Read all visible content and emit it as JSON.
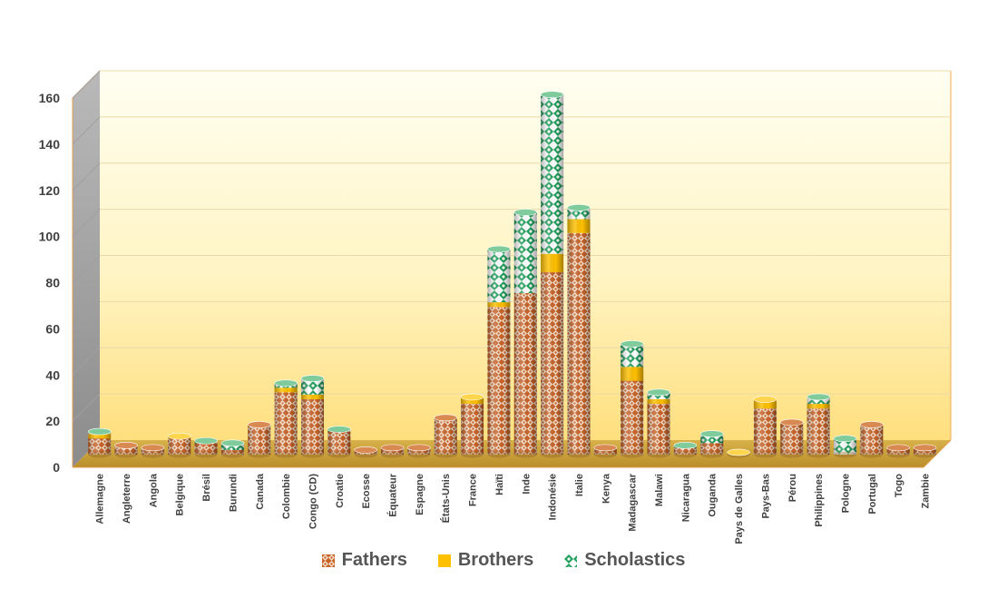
{
  "chart_data": {
    "type": "bar",
    "stacked": true,
    "categories": [
      "Allemagne",
      "Angleterre",
      "Angola",
      "Belgique",
      "Brésil",
      "Burundi",
      "Canada",
      "Colombie",
      "Congo (CD)",
      "Croatie",
      "Ecosse",
      "Équateur",
      "Espagne",
      "États-Unis",
      "France",
      "Haïti",
      "Inde",
      "Indonésie",
      "Italie",
      "Kenya",
      "Madagascar",
      "Malawi",
      "Nicaragua",
      "Ouganda",
      "Pays de Galles",
      "Pays-Bas",
      "Pérou",
      "Philippines",
      "Pologne",
      "Portugal",
      "Togo",
      "Zambie"
    ],
    "series": [
      {
        "name": "Fathers",
        "color": "#C8642A",
        "values": [
          7,
          4,
          3,
          7,
          5,
          2,
          13,
          27,
          24,
          10,
          2,
          3,
          3,
          16,
          22,
          64,
          70,
          79,
          96,
          3,
          32,
          22,
          3,
          5,
          0,
          20,
          14,
          20,
          0,
          13,
          3,
          3
        ]
      },
      {
        "name": "Brothers",
        "color": "#FFC000",
        "values": [
          2,
          0,
          0,
          1,
          0,
          0,
          0,
          2,
          2,
          0,
          0,
          0,
          0,
          0,
          3,
          2,
          0,
          8,
          6,
          0,
          6,
          2,
          0,
          0,
          1,
          4,
          0,
          2,
          0,
          0,
          0,
          0
        ]
      },
      {
        "name": "Scholastics",
        "color": "#1E9E5A",
        "values": [
          1,
          0,
          0,
          0,
          1,
          3,
          0,
          2,
          7,
          1,
          0,
          0,
          0,
          0,
          0,
          23,
          35,
          69,
          5,
          0,
          10,
          3,
          1,
          4,
          0,
          0,
          0,
          3,
          7,
          0,
          0,
          0
        ]
      }
    ],
    "yticks": [
      "0",
      "20",
      "40",
      "60",
      "80",
      "100",
      "120",
      "140",
      "160"
    ],
    "ylim": [
      0,
      160
    ],
    "grid": true,
    "legend_position": "bottom"
  }
}
